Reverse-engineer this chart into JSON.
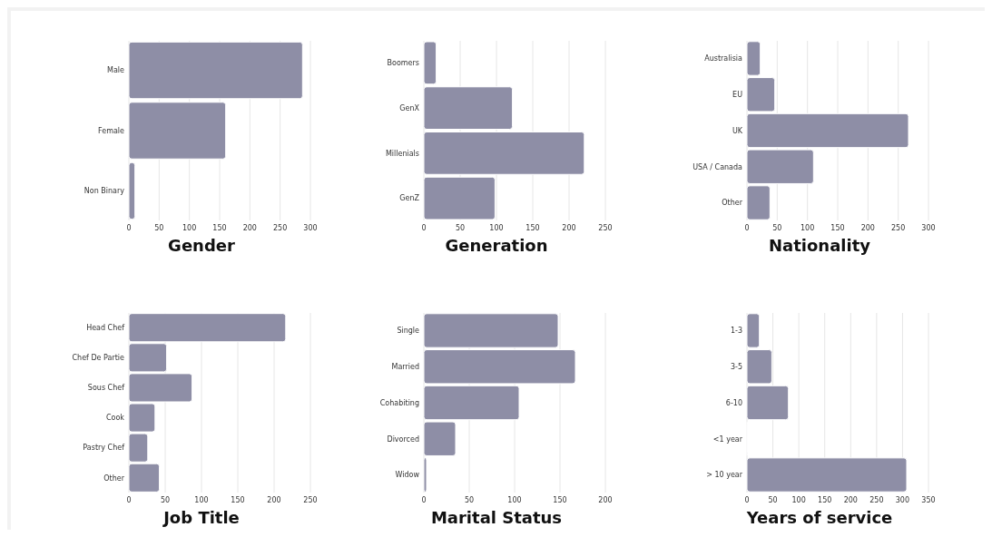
{
  "chart_data": [
    {
      "type": "bar",
      "orientation": "horizontal",
      "title": "Gender",
      "categories": [
        "Male",
        "Female",
        "Non Binary"
      ],
      "values": [
        287,
        160,
        10
      ],
      "color": "#8e8ea6",
      "xlim": [
        0,
        300
      ],
      "xticks": [
        0,
        50,
        100,
        150,
        200,
        250,
        300
      ],
      "grid": "x"
    },
    {
      "type": "bar",
      "orientation": "horizontal",
      "title": "Generation",
      "categories": [
        "Boomers",
        "GenX",
        "Millenials",
        "GenZ"
      ],
      "values": [
        17,
        122,
        221,
        98
      ],
      "color": "#8e8ea6",
      "xlim": [
        0,
        250
      ],
      "xticks": [
        0,
        50,
        100,
        150,
        200,
        250
      ],
      "grid": "x"
    },
    {
      "type": "bar",
      "orientation": "horizontal",
      "title": "Nationality",
      "categories": [
        "Australisia",
        "EU",
        "UK",
        "USA / Canada",
        "Other"
      ],
      "values": [
        22,
        46,
        267,
        110,
        38
      ],
      "color": "#8e8ea6",
      "xlim": [
        0,
        300
      ],
      "xticks": [
        0,
        50,
        100,
        150,
        200,
        250,
        300
      ],
      "grid": "x"
    },
    {
      "type": "bar",
      "orientation": "horizontal",
      "title": "Job Title",
      "categories": [
        "Head Chef",
        "Chef De Partie",
        "Sous Chef",
        "Cook",
        "Pastry Chef",
        "Other"
      ],
      "values": [
        216,
        52,
        87,
        36,
        26,
        42
      ],
      "color": "#8e8ea6",
      "xlim": [
        0,
        250
      ],
      "xticks": [
        0,
        50,
        100,
        150,
        200,
        250
      ],
      "grid": "x"
    },
    {
      "type": "bar",
      "orientation": "horizontal",
      "title": "Marital Status",
      "categories": [
        "Single",
        "Married",
        "Cohabiting",
        "Divorced",
        "Widow"
      ],
      "values": [
        148,
        167,
        105,
        35,
        3
      ],
      "color": "#8e8ea6",
      "xlim": [
        0,
        200
      ],
      "xticks": [
        0,
        50,
        100,
        150,
        200
      ],
      "grid": "x"
    },
    {
      "type": "bar",
      "orientation": "horizontal",
      "title": "Years of service",
      "categories": [
        "1-3",
        "3-5",
        "6-10",
        "<1 year",
        "> 10 year"
      ],
      "values": [
        24,
        48,
        80,
        1,
        308
      ],
      "color": "#8e8ea6",
      "xlim": [
        0,
        350
      ],
      "xticks": [
        0,
        50,
        100,
        150,
        200,
        250,
        300,
        350
      ],
      "grid": "x"
    }
  ]
}
